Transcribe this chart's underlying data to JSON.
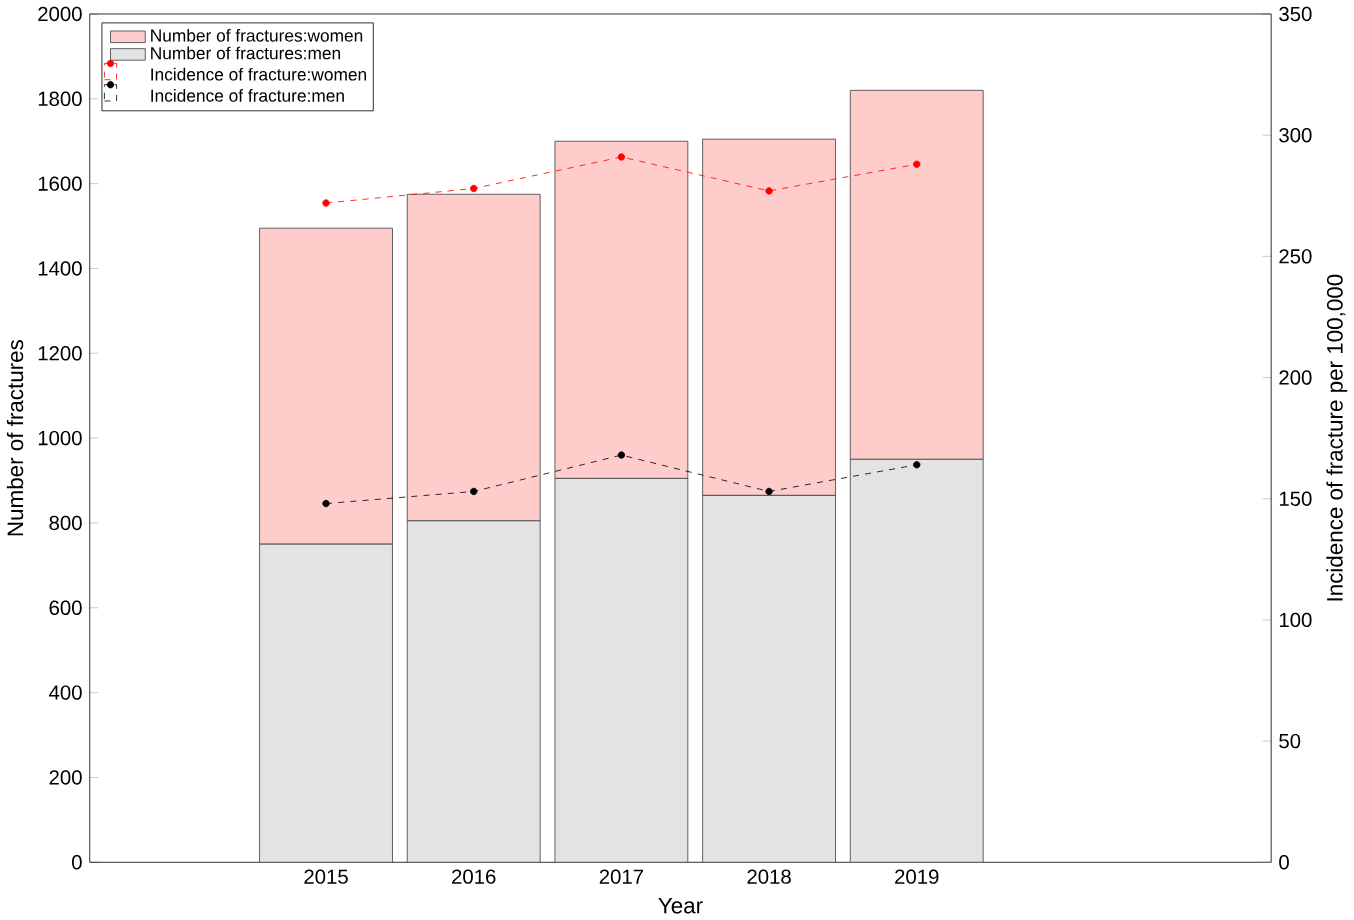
{
  "chart_data": {
    "type": "bar",
    "stacked": true,
    "xlabel": "Year",
    "ylabel": "Number of fractures",
    "y2label": "Incidence of fracture per 100,000",
    "x": [
      2015,
      2016,
      2017,
      2018,
      2019
    ],
    "xlim": [
      2013.4,
      2021.4
    ],
    "xticks": [
      2015,
      2016,
      2017,
      2018,
      2019
    ],
    "ylim": [
      0,
      2000
    ],
    "yticks": [
      0,
      200,
      400,
      600,
      800,
      1000,
      1200,
      1400,
      1600,
      1800,
      2000
    ],
    "y2lim": [
      0,
      350
    ],
    "y2ticks": [
      0,
      50,
      100,
      150,
      200,
      250,
      300,
      350
    ],
    "legend": "top left",
    "grid": false,
    "series": [
      {
        "name": "Number of fractures:men",
        "color": "#e3e3e3",
        "values": [
          750,
          805,
          905,
          865,
          950
        ]
      },
      {
        "name": "Number of fractures:women",
        "color": "#ffcccc",
        "values": [
          745,
          770,
          795,
          840,
          870
        ]
      },
      {
        "name": "Incidence of fracture:women",
        "type": "line",
        "axis": "y2",
        "color": "#ff0000",
        "marker": "circle",
        "line_style": "dashed",
        "values": [
          272,
          278,
          291,
          277,
          288
        ]
      },
      {
        "name": "Incidence of fracture:men",
        "type": "line",
        "axis": "y2",
        "color": "#000000",
        "marker": "circle",
        "line_style": "dashed",
        "values": [
          148,
          153,
          168,
          153,
          164
        ]
      }
    ]
  }
}
